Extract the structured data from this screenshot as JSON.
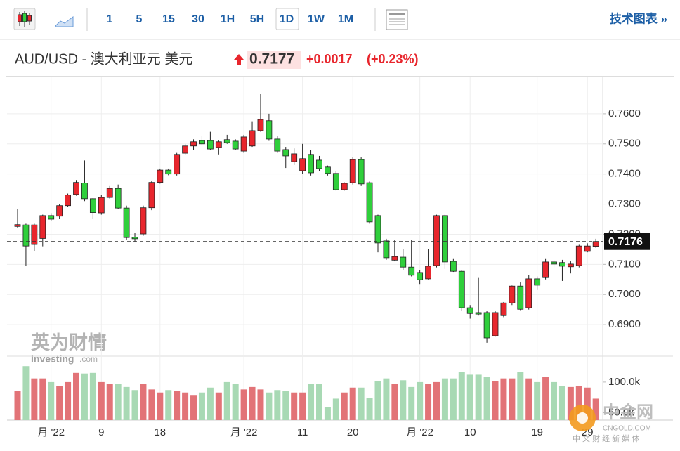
{
  "toolbar": {
    "intervals": [
      "1",
      "5",
      "15",
      "30",
      "1H",
      "5H",
      "1D",
      "1W",
      "1M"
    ],
    "selected_index": 6,
    "link": "技术图表 »"
  },
  "header": {
    "symbol": "AUD/USD - 澳大利亚元 美元",
    "price": "0.7177",
    "change": "+0.0017",
    "change_pct": "(+0.23%)"
  },
  "watermarks": {
    "brand_cn": "英为财情",
    "brand": "Investing",
    "brand_domain": ".com",
    "cngold": "中金网",
    "cngold_url": "CNGOLD.COM",
    "cngold_tagline": "中 文 财 经 新 媒 体"
  },
  "chart_data": [
    {
      "type": "candlestick",
      "categories": [
        null,
        null,
        null,
        null,
        "月 '22",
        null,
        null,
        null,
        null,
        null,
        "9",
        null,
        null,
        null,
        null,
        null,
        null,
        "18",
        null,
        null,
        null,
        null,
        null,
        null,
        null,
        null,
        null,
        "月 '22",
        null,
        null,
        null,
        null,
        null,
        null,
        "11",
        null,
        null,
        null,
        null,
        null,
        "20",
        null,
        null,
        null,
        null,
        null,
        null,
        null,
        "月 '22",
        null,
        null,
        null,
        null,
        null,
        "10",
        null,
        null,
        null,
        null,
        null,
        null,
        null,
        "19",
        null,
        null,
        null,
        null,
        null,
        "29",
        null
      ],
      "open": [
        0.7226,
        0.7231,
        0.7166,
        0.7186,
        0.7262,
        0.726,
        0.7295,
        0.7332,
        0.737,
        0.7318,
        0.7271,
        0.7322,
        0.7352,
        0.7287,
        0.719,
        0.7201,
        0.7288,
        0.7372,
        0.7413,
        0.74,
        0.7469,
        0.7493,
        0.7511,
        0.7511,
        0.7488,
        0.7514,
        0.7509,
        0.7476,
        0.7493,
        0.7544,
        0.7577,
        0.7516,
        0.7481,
        0.7441,
        0.7411,
        0.7465,
        0.7446,
        0.7423,
        0.7402,
        0.7348,
        0.7371,
        0.7448,
        0.7371,
        0.7262,
        0.7178,
        0.7114,
        0.7124,
        0.7091,
        0.7073,
        0.7052,
        0.7096,
        0.7262,
        0.711,
        0.7077,
        0.6956,
        0.694,
        0.694,
        0.6863,
        0.693,
        0.6972,
        0.7028,
        0.6956,
        0.7052,
        0.7056,
        0.7108,
        0.7106,
        0.7092,
        0.7096,
        0.7143,
        0.716
      ],
      "high": [
        0.7285,
        0.7235,
        0.7235,
        0.7265,
        0.727,
        0.73,
        0.7335,
        0.738,
        0.7445,
        0.732,
        0.733,
        0.736,
        0.7365,
        0.7295,
        0.7205,
        0.7295,
        0.7378,
        0.7418,
        0.7418,
        0.747,
        0.75,
        0.7515,
        0.7525,
        0.754,
        0.7512,
        0.753,
        0.7515,
        0.753,
        0.7575,
        0.7665,
        0.76,
        0.7525,
        0.749,
        0.7485,
        0.75,
        0.748,
        0.746,
        0.7428,
        0.741,
        0.7372,
        0.7455,
        0.7455,
        0.7375,
        0.7265,
        0.7185,
        0.718,
        0.715,
        0.718,
        0.708,
        0.715,
        0.7265,
        0.7265,
        0.712,
        0.708,
        0.6965,
        0.7055,
        0.6945,
        0.6945,
        0.6975,
        0.703,
        0.704,
        0.7065,
        0.706,
        0.712,
        0.7115,
        0.7115,
        0.711,
        0.7165,
        0.717,
        0.7185
      ],
      "low": [
        0.7222,
        0.7096,
        0.7145,
        0.716,
        0.7245,
        0.725,
        0.729,
        0.7328,
        0.731,
        0.725,
        0.7265,
        0.7318,
        0.7285,
        0.718,
        0.7175,
        0.7195,
        0.728,
        0.7368,
        0.7396,
        0.7395,
        0.7465,
        0.748,
        0.7496,
        0.748,
        0.7465,
        0.75,
        0.748,
        0.747,
        0.749,
        0.754,
        0.751,
        0.747,
        0.742,
        0.743,
        0.74,
        0.7395,
        0.741,
        0.7395,
        0.7345,
        0.7345,
        0.7365,
        0.736,
        0.7235,
        0.714,
        0.7115,
        0.711,
        0.708,
        0.706,
        0.7035,
        0.705,
        0.709,
        0.7085,
        0.7075,
        0.6945,
        0.692,
        0.693,
        0.684,
        0.686,
        0.6925,
        0.6965,
        0.6948,
        0.695,
        0.7015,
        0.705,
        0.709,
        0.7045,
        0.707,
        0.709,
        0.714,
        0.7155
      ],
      "close": [
        0.7232,
        0.7161,
        0.7231,
        0.7262,
        0.725,
        0.7295,
        0.733,
        0.7372,
        0.7318,
        0.7272,
        0.7322,
        0.7352,
        0.7287,
        0.7189,
        0.7185,
        0.7288,
        0.7372,
        0.7413,
        0.74,
        0.7465,
        0.7493,
        0.7507,
        0.75,
        0.7483,
        0.7507,
        0.7504,
        0.7483,
        0.7523,
        0.7544,
        0.7581,
        0.7516,
        0.7476,
        0.746,
        0.7467,
        0.7451,
        0.7404,
        0.7418,
        0.7402,
        0.7348,
        0.7369,
        0.7448,
        0.7367,
        0.7241,
        0.7171,
        0.7122,
        0.7126,
        0.7091,
        0.7064,
        0.7049,
        0.7094,
        0.7262,
        0.7108,
        0.7077,
        0.6956,
        0.6937,
        0.6935,
        0.6856,
        0.694,
        0.6972,
        0.7028,
        0.6951,
        0.7052,
        0.7031,
        0.7108,
        0.7101,
        0.7094,
        0.7101,
        0.7161,
        0.7161,
        0.7176
      ],
      "up_color": "#e8262d",
      "down_color": "#2fcf3b",
      "ylim": [
        0.68,
        0.77
      ],
      "yticks": [
        {
          "value": 0.76,
          "label": "0.7600"
        },
        {
          "value": 0.75,
          "label": "0.7500"
        },
        {
          "value": 0.74,
          "label": "0.7400"
        },
        {
          "value": 0.73,
          "label": "0.7300"
        },
        {
          "value": 0.72,
          "label": "0.7200"
        },
        {
          "value": 0.71,
          "label": "0.7100"
        },
        {
          "value": 0.7,
          "label": "0.7000"
        },
        {
          "value": 0.69,
          "label": "0.6900"
        }
      ],
      "last_price": {
        "value": 0.7176,
        "label": "0.7176"
      },
      "grid": true
    },
    {
      "type": "bar",
      "values": [
        86000,
        126000,
        106000,
        106000,
        100000,
        94000,
        100000,
        115000,
        114000,
        115000,
        100000,
        97000,
        97000,
        92000,
        87000,
        97000,
        88000,
        83000,
        87000,
        85000,
        83000,
        79000,
        83000,
        91000,
        83000,
        100000,
        97000,
        88000,
        92000,
        88000,
        83000,
        87000,
        85000,
        83000,
        83000,
        97000,
        97000,
        59000,
        73000,
        83000,
        91000,
        91000,
        74000,
        102000,
        106000,
        97000,
        103000,
        92000,
        100000,
        97000,
        100000,
        106000,
        106000,
        117000,
        112000,
        112000,
        108000,
        102000,
        106000,
        106000,
        117000,
        106000,
        100000,
        108000,
        100000,
        94000,
        92000,
        94000,
        91000,
        73000
      ],
      "up_color": "#e27377",
      "down_color": "#a8d9b4",
      "ylim": [
        38000,
        140000
      ],
      "yticks": [
        {
          "value": 100000,
          "label": "100.0k"
        },
        {
          "value": 50000,
          "label": "50.0k"
        }
      ]
    }
  ]
}
